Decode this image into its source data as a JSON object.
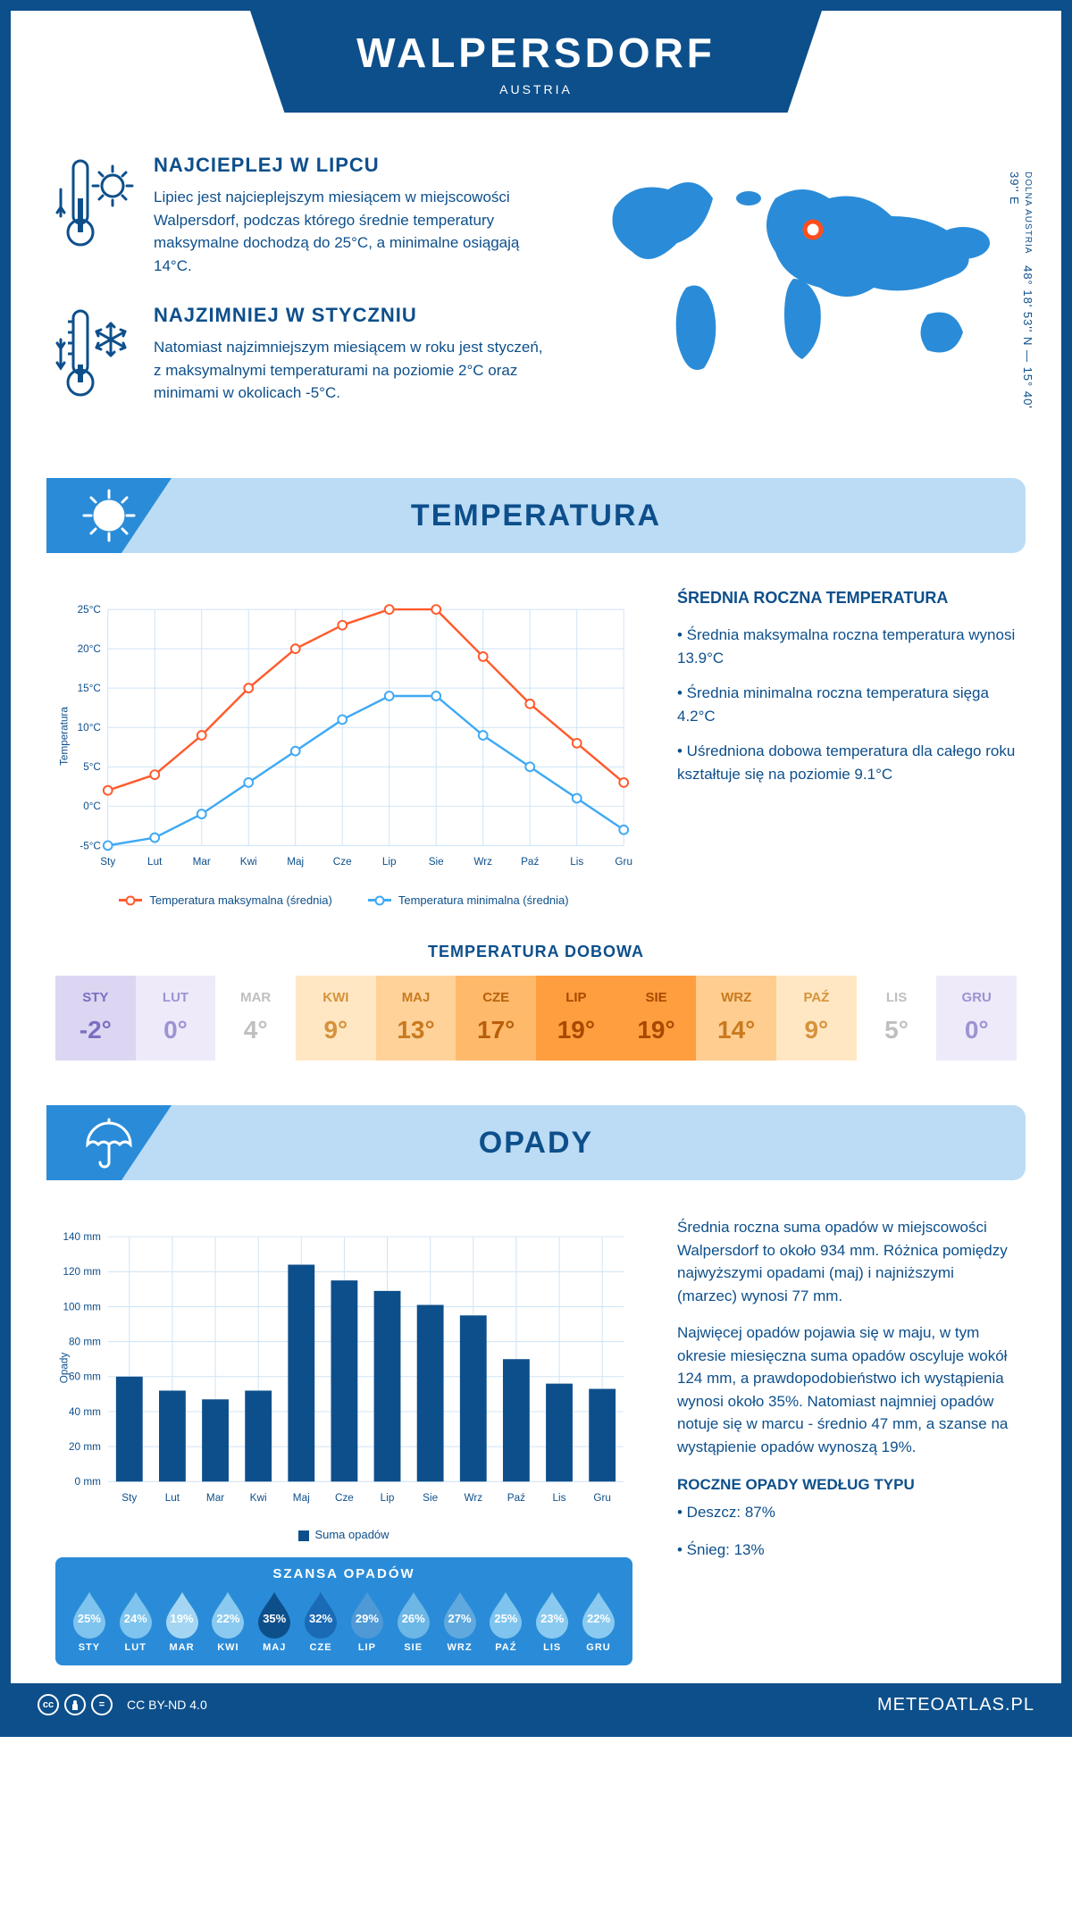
{
  "header": {
    "title": "WALPERSDORF",
    "subtitle": "AUSTRIA"
  },
  "coords": {
    "region": "DOLNA AUSTRIA",
    "text": "48° 18' 53'' N — 15° 40' 39'' E"
  },
  "facts": {
    "hot": {
      "title": "NAJCIEPLEJ W LIPCU",
      "body": "Lipiec jest najcieplejszym miesiącem w miejscowości Walpersdorf, podczas którego średnie temperatury maksymalne dochodzą do 25°C, a minimalne osiągają 14°C."
    },
    "cold": {
      "title": "NAJZIMNIEJ W STYCZNIU",
      "body": "Natomiast najzimniejszym miesiącem w roku jest styczeń, z maksymalnymi temperaturami na poziomie 2°C oraz minimami w okolicach -5°C."
    }
  },
  "sections": {
    "temperature": "TEMPERATURA",
    "precipitation": "OPADY"
  },
  "months": [
    "Sty",
    "Lut",
    "Mar",
    "Kwi",
    "Maj",
    "Cze",
    "Lip",
    "Sie",
    "Wrz",
    "Paź",
    "Lis",
    "Gru"
  ],
  "months_upper": [
    "STY",
    "LUT",
    "MAR",
    "KWI",
    "MAJ",
    "CZE",
    "LIP",
    "SIE",
    "WRZ",
    "PAŹ",
    "LIS",
    "GRU"
  ],
  "temperature_chart": {
    "type": "line",
    "y_label": "Temperatura",
    "y_min": -5,
    "y_max": 25,
    "y_step": 5,
    "y_unit": "°C",
    "series": {
      "max": {
        "label": "Temperatura maksymalna (średnia)",
        "color": "#ff5a2c",
        "values": [
          2,
          4,
          9,
          15,
          20,
          23,
          25,
          25,
          19,
          13,
          8,
          3
        ]
      },
      "min": {
        "label": "Temperatura minimalna (średnia)",
        "color": "#3fa9f5",
        "values": [
          -5,
          -4,
          -1,
          3,
          7,
          11,
          14,
          14,
          9,
          5,
          1,
          -3
        ]
      }
    },
    "grid_color": "#cfe3f5",
    "background": "#ffffff",
    "axis_color": "#0d4f8b",
    "line_width": 2.5,
    "marker": "circle",
    "marker_size": 5,
    "label_fontsize": 12
  },
  "temperature_stats": {
    "title": "ŚREDNIA ROCZNA TEMPERATURA",
    "bullets": [
      "• Średnia maksymalna roczna temperatura wynosi 13.9°C",
      "• Średnia minimalna roczna temperatura sięga 4.2°C",
      "• Uśredniona dobowa temperatura dla całego roku kształtuje się na poziomie 9.1°C"
    ]
  },
  "daily_temp": {
    "title": "TEMPERATURA DOBOWA",
    "values": [
      "-2°",
      "0°",
      "4°",
      "9°",
      "13°",
      "17°",
      "19°",
      "19°",
      "14°",
      "9°",
      "5°",
      "0°"
    ],
    "cell_bg": [
      "#dcd6f2",
      "#eeeaf9",
      "#ffffff",
      "#ffe7c4",
      "#ffd29a",
      "#ffb96b",
      "#ff9e3e",
      "#ff9e3e",
      "#ffcd8f",
      "#ffe7c4",
      "#ffffff",
      "#eeeaf9"
    ],
    "cell_fg": [
      "#7a6fc1",
      "#9c93d2",
      "#bfbfbf",
      "#d6923b",
      "#c97a1f",
      "#b85f0a",
      "#a84900",
      "#a84900",
      "#c97a1f",
      "#d6923b",
      "#bfbfbf",
      "#9c93d2"
    ]
  },
  "precip_chart": {
    "type": "bar",
    "y_label": "Opady",
    "y_min": 0,
    "y_max": 140,
    "y_step": 20,
    "y_unit": " mm",
    "values": [
      60,
      52,
      47,
      52,
      124,
      115,
      109,
      101,
      95,
      70,
      56,
      53
    ],
    "bar_color": "#0d4f8b",
    "grid_color": "#cfe3f5",
    "background": "#ffffff",
    "bar_width": 0.62,
    "legend": "Suma opadów",
    "label_fontsize": 12
  },
  "precip_text": {
    "p1": "Średnia roczna suma opadów w miejscowości Walpersdorf to około 934 mm. Różnica pomiędzy najwyższymi opadami (maj) i najniższymi (marzec) wynosi 77 mm.",
    "p2": "Najwięcej opadów pojawia się w maju, w tym okresie miesięczna suma opadów oscyluje wokół 124 mm, a prawdopodobieństwo ich wystąpienia wynosi około 35%. Natomiast najmniej opadów notuje się w marcu - średnio 47 mm, a szanse na wystąpienie opadów wynoszą 19%.",
    "type_title": "ROCZNE OPADY WEDŁUG TYPU",
    "types": [
      "• Deszcz: 87%",
      "• Śnieg: 13%"
    ]
  },
  "chance": {
    "title": "SZANSA OPADÓW",
    "values": [
      25,
      24,
      19,
      22,
      35,
      32,
      29,
      26,
      27,
      25,
      23,
      22
    ],
    "drop_colors": [
      "#7ec4ee",
      "#7ec4ee",
      "#a4d6f3",
      "#8bcaf0",
      "#0d4f8b",
      "#1a6ab5",
      "#4e99d6",
      "#6db7e6",
      "#5fa9de",
      "#7ec4ee",
      "#8bcaf0",
      "#8bcaf0"
    ],
    "bg": "#2a8cd8"
  },
  "footer": {
    "license": "CC BY-ND 4.0",
    "brand": "METEOATLAS.PL"
  },
  "palette": {
    "primary": "#0d4f8b",
    "section_bg": "#bcdcf5",
    "section_corner": "#2a8cd8",
    "map_fill": "#2a8cd8",
    "marker": "#ff4d1c"
  }
}
